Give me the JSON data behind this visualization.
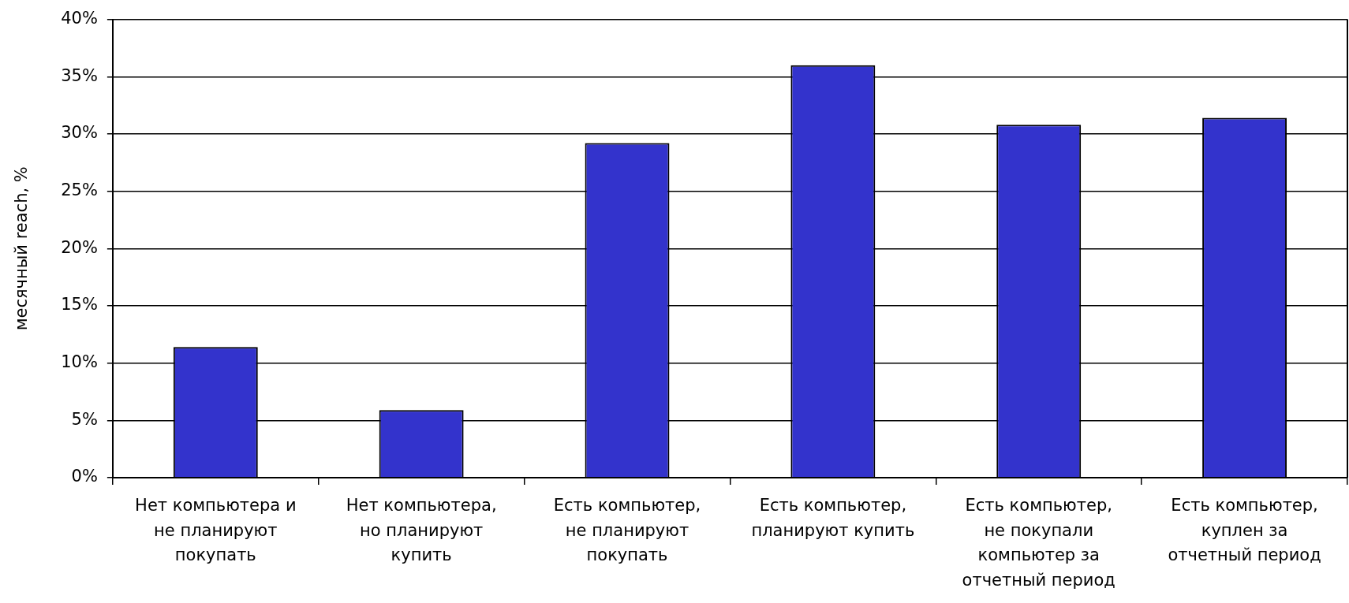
{
  "chart_data": {
    "type": "bar",
    "ylabel": "месячный reach, %",
    "categories": [
      "Нет компьютера и не планируют покупать",
      "Нет компьютера, но планируют купить",
      "Есть компьютер, не планируют покупать",
      "Есть компьютер, планируют купить",
      "Есть компьютер, не покупали компьютер за отчетный период",
      "Есть компьютер, куплен за отчетный период"
    ],
    "values": [
      11.4,
      5.9,
      29.2,
      36.0,
      30.8,
      31.4
    ],
    "color": "#3333cc",
    "ylim": [
      0,
      40
    ],
    "yticks": [
      {
        "value": 0,
        "label": "0%"
      },
      {
        "value": 5,
        "label": "5%"
      },
      {
        "value": 10,
        "label": "10%"
      },
      {
        "value": 15,
        "label": "15%"
      },
      {
        "value": 20,
        "label": "20%"
      },
      {
        "value": 25,
        "label": "25%"
      },
      {
        "value": 30,
        "label": "30%"
      },
      {
        "value": 35,
        "label": "35%"
      },
      {
        "value": 40,
        "label": "40%"
      }
    ],
    "grid": "y"
  }
}
